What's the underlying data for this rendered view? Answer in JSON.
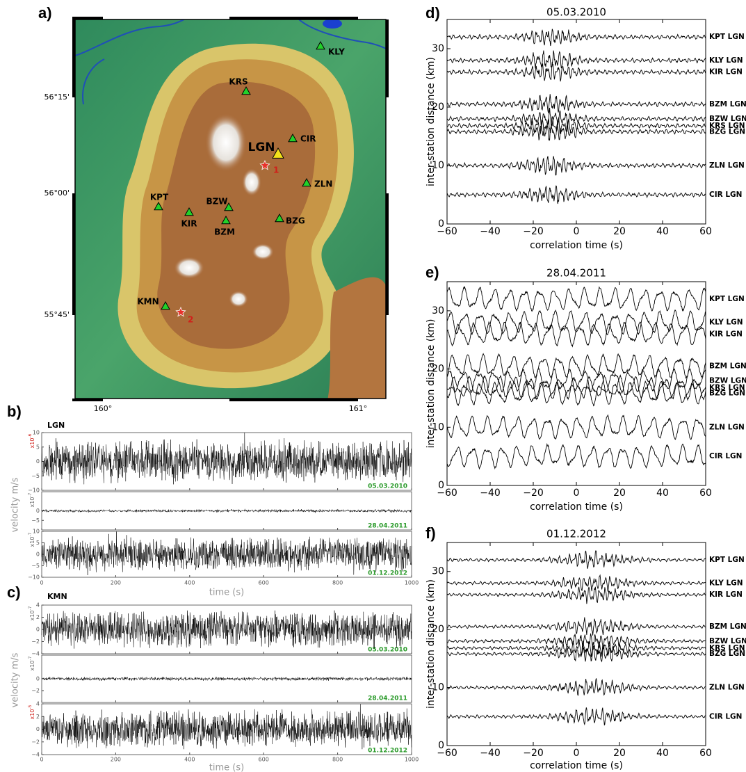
{
  "panel_labels": [
    "a)",
    "b)",
    "c)",
    "d)",
    "e)",
    "f)"
  ],
  "map": {
    "stations": [
      "KLY",
      "KRS",
      "CIR",
      "ZLN",
      "KPT",
      "KIR",
      "BZW",
      "BZM",
      "BZG",
      "KMN"
    ],
    "center_station": "LGN",
    "events": [
      "1",
      "2"
    ],
    "lat_labels": [
      "56°15'",
      "56°00'",
      "55°45'"
    ],
    "lon_labels": [
      "160°",
      "161°"
    ]
  },
  "velocity_panels": [
    {
      "station": "LGN",
      "y_label": "velocity m/s",
      "x_label": "time (s)",
      "xlim": [
        0,
        1000
      ],
      "xticks": [
        0,
        200,
        400,
        600,
        800,
        1000
      ],
      "strips": [
        {
          "date": "05.03.2010",
          "exponent_base": "x10",
          "exponent_power": "-6",
          "exponent_color": "#d0201a",
          "ylim": [
            -10,
            10
          ],
          "yticks": [
            10,
            5,
            0,
            {
              "value": -5,
              "label": "−5"
            },
            {
              "value": -10,
              "label": "−10"
            }
          ]
        },
        {
          "date": "28.04.2011",
          "exponent_base": "x10",
          "exponent_power": "-7",
          "exponent_color": "#666666",
          "ylim": [
            -10,
            10
          ],
          "yticks": [
            0,
            {
              "value": -5,
              "label": "−5"
            }
          ]
        },
        {
          "date": "01.12.2012",
          "exponent_base": "x10",
          "exponent_power": "-7",
          "exponent_color": "#666666",
          "ylim": [
            -10,
            10
          ],
          "yticks": [
            10,
            5,
            0,
            {
              "value": -5,
              "label": "−5"
            },
            {
              "value": -10,
              "label": "−10"
            }
          ]
        }
      ]
    },
    {
      "station": "KMN",
      "y_label": "velocity m/s",
      "x_label": "time (s)",
      "xlim": [
        0,
        1000
      ],
      "xticks": [
        0,
        200,
        400,
        600,
        800,
        1000
      ],
      "strips": [
        {
          "date": "05.03.2010",
          "exponent_base": "x10",
          "exponent_power": "-7",
          "exponent_color": "#666666",
          "ylim": [
            -4,
            4
          ],
          "yticks": [
            4,
            2,
            0,
            {
              "value": -2,
              "label": "−2"
            },
            {
              "value": -4,
              "label": "−4"
            }
          ]
        },
        {
          "date": "28.04.2011",
          "exponent_base": "x10",
          "exponent_power": "-7",
          "exponent_color": "#666666",
          "ylim": [
            -4,
            4
          ],
          "yticks": [
            0,
            {
              "value": -2,
              "label": "−2"
            }
          ]
        },
        {
          "date": "01.12.2012",
          "exponent_base": "x10",
          "exponent_power": "-5",
          "exponent_color": "#d0201a",
          "ylim": [
            -4,
            4
          ],
          "yticks": [
            4,
            2,
            0,
            {
              "value": -2,
              "label": "−2"
            },
            {
              "value": -4,
              "label": "−4"
            }
          ]
        }
      ]
    }
  ],
  "correlation_panels": [
    {
      "title": "05.03.2010",
      "y_label": "inter-station distance (km)",
      "x_label": "correlation time (s)",
      "xlim": [
        -60,
        60
      ],
      "xticks": [
        {
          "value": -60,
          "label": "−60"
        },
        {
          "value": -40,
          "label": "−40"
        },
        {
          "value": -20,
          "label": "−20"
        },
        0,
        20,
        40,
        60
      ],
      "ylim": [
        0,
        35
      ],
      "yticks": [
        0,
        10,
        20,
        30
      ],
      "traces": [
        {
          "label": "KPT LGN",
          "distance": 32
        },
        {
          "label": "KLY LGN",
          "distance": 28
        },
        {
          "label": "KIR LGN",
          "distance": 26
        },
        {
          "label": "BZM LGN",
          "distance": 20.5
        },
        {
          "label": "BZW LGN",
          "distance": 18
        },
        {
          "label": "KRS LGN",
          "distance": 16.8
        },
        {
          "label": "BZG LGN",
          "distance": 15.8
        },
        {
          "label": "ZLN LGN",
          "distance": 10
        },
        {
          "label": "CIR LGN",
          "distance": 5
        }
      ]
    },
    {
      "title": "28.04.2011",
      "y_label": "inter-station distance (km)",
      "x_label": "correlation time (s)",
      "xlim": [
        -60,
        60
      ],
      "xticks": [
        {
          "value": -60,
          "label": "−60"
        },
        {
          "value": -40,
          "label": "−40"
        },
        {
          "value": -20,
          "label": "−20"
        },
        0,
        20,
        40,
        60
      ],
      "ylim": [
        0,
        35
      ],
      "yticks": [
        0,
        10,
        20,
        30
      ],
      "traces": [
        {
          "label": "KPT LGN",
          "distance": 32
        },
        {
          "label": "KLY LGN",
          "distance": 28
        },
        {
          "label": "KIR LGN",
          "distance": 26
        },
        {
          "label": "BZM LGN",
          "distance": 20.5
        },
        {
          "label": "BZW LGN",
          "distance": 18
        },
        {
          "label": "KRS LGN",
          "distance": 16.8
        },
        {
          "label": "BZG LGN",
          "distance": 15.8
        },
        {
          "label": "ZLN LGN",
          "distance": 10
        },
        {
          "label": "CIR LGN",
          "distance": 5
        }
      ]
    },
    {
      "title": "01.12.2012",
      "y_label": "inter-station distance (km)",
      "x_label": "correlation time (s)",
      "xlim": [
        -60,
        60
      ],
      "xticks": [
        {
          "value": -60,
          "label": "−60"
        },
        {
          "value": -40,
          "label": "−40"
        },
        {
          "value": -20,
          "label": "−20"
        },
        0,
        20,
        40,
        60
      ],
      "ylim": [
        0,
        35
      ],
      "yticks": [
        0,
        10,
        20,
        30
      ],
      "traces": [
        {
          "label": "KPT LGN",
          "distance": 32
        },
        {
          "label": "KLY LGN",
          "distance": 28
        },
        {
          "label": "KIR LGN",
          "distance": 26
        },
        {
          "label": "BZM LGN",
          "distance": 20.5
        },
        {
          "label": "BZW LGN",
          "distance": 18
        },
        {
          "label": "KRS LGN",
          "distance": 16.8
        },
        {
          "label": "BZG LGN",
          "distance": 15.8
        },
        {
          "label": "ZLN LGN",
          "distance": 10
        },
        {
          "label": "CIR LGN",
          "distance": 5
        }
      ]
    }
  ]
}
